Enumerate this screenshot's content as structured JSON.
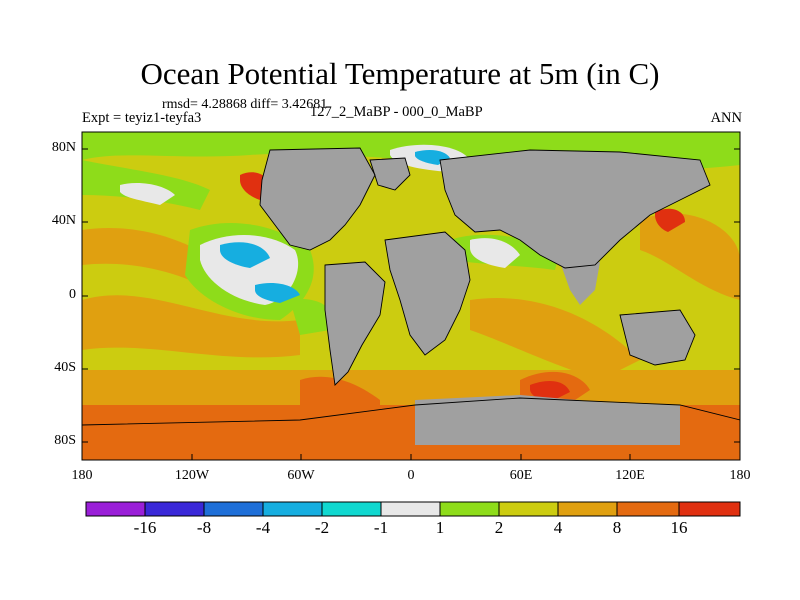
{
  "title": "Ocean Potential Temperature at 5m (in C)",
  "stats": "rmsd= 4.28868 diff= 3.42681",
  "experiment": "Expt = teyiz1-teyfa3",
  "period": "127_2_MaBP - 000_0_MaBP",
  "season": "ANN",
  "lat_labels": [
    "80N",
    "40N",
    "0",
    "40S",
    "80S"
  ],
  "lon_labels": [
    "180",
    "120W",
    "60W",
    "0",
    "60E",
    "120E",
    "180"
  ],
  "colorbar": {
    "labels": [
      "-16",
      "-8",
      "-4",
      "-2",
      "-1",
      "1",
      "2",
      "4",
      "8",
      "16"
    ],
    "colors": [
      "#9a1fd8",
      "#3a28d8",
      "#1e6fd8",
      "#16aee0",
      "#10d8d0",
      "#e8e8e8",
      "#8edc1a",
      "#cccc10",
      "#e0a010",
      "#e46a10",
      "#e03010"
    ]
  },
  "map_colors": {
    "land": "#a0a0a0",
    "ocean_mid": "#cccc10",
    "ocean_warm": "#e0a010",
    "ocean_hot": "#e46a10",
    "ocean_cool": "#8edc1a",
    "neutral": "#e8e8e8",
    "cold": "#16aee0",
    "very_hot": "#e03010"
  }
}
